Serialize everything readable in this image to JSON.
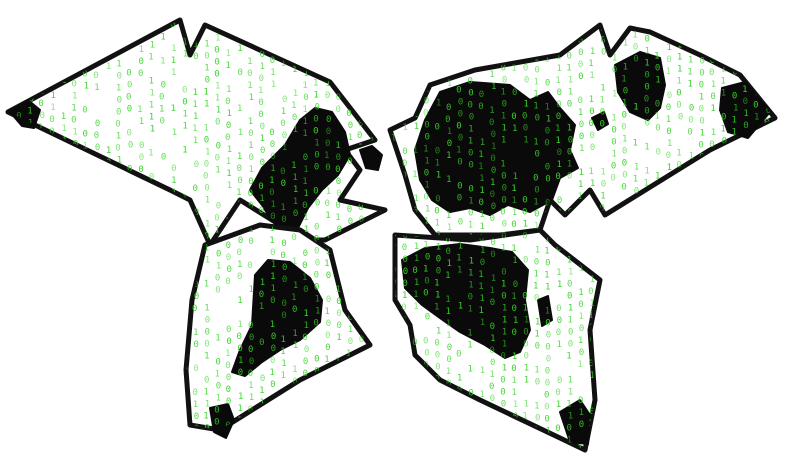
{
  "map": {
    "projection": "butterfly-world-map",
    "lobes": [
      "north-america-lobe",
      "eurasia-lobe",
      "south-america-lobe",
      "africa-lobe"
    ],
    "colors": {
      "background": "#ffffff",
      "land": "#0a0a0a",
      "outline": "#111111",
      "binary_digits": "#39d42a"
    },
    "binary_digits": [
      "0",
      "1"
    ]
  }
}
